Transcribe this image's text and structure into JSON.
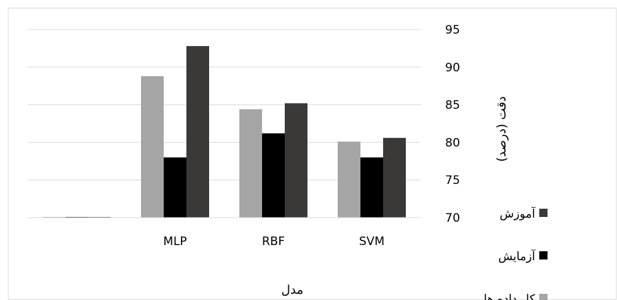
{
  "chart_data": {
    "type": "bar",
    "title": "",
    "xlabel": "مدل",
    "ylabel": "دقت (درصد)",
    "ylim": [
      70,
      95
    ],
    "yticks": [
      70,
      75,
      80,
      85,
      90,
      95
    ],
    "y_axis_position": "right",
    "grid": true,
    "legend_position": "right",
    "categories": [
      "",
      "MLP",
      "RBF",
      "SVM"
    ],
    "series": [
      {
        "name": "کل داده ها",
        "values": [
          70,
          88.8,
          84.4,
          80.1
        ],
        "color": "#a5a5a5"
      },
      {
        "name": "آزمایش",
        "values": [
          70,
          78.0,
          81.2,
          78.0
        ],
        "color": "#000000"
      },
      {
        "name": "آموزش",
        "values": [
          70,
          92.8,
          85.2,
          80.6
        ],
        "color": "#3a3938"
      }
    ],
    "legend_order": [
      "آموزش",
      "آزمایش",
      "کل داده ها"
    ],
    "colors": {
      "grid": "#d9d9d9",
      "frame": "#d9d9d9",
      "baseline": "#d9d9d9"
    }
  }
}
